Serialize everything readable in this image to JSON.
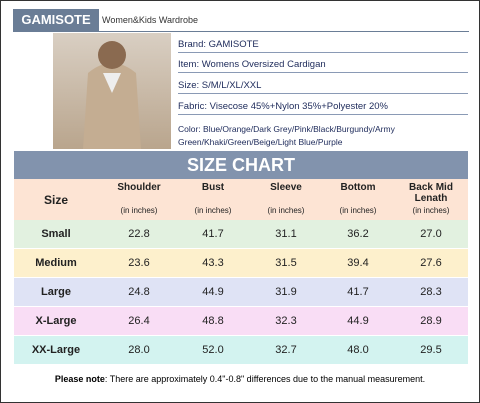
{
  "header": {
    "brand_tag": "GAMISOTE",
    "tagline": "Women&Kids Wardrobe"
  },
  "info": [
    "Brand: GAMISOTE",
    "Item: Womens Oversized Cardigan",
    "Size: S/M/L/XL/XXL",
    "Fabric: Visecose 45%+Nylon 35%+Polyester 20%"
  ],
  "colors": [
    "Color: Blue/Orange/Dark Grey/Pink/Black/Burgundy/Army",
    "Green/Khaki/Green/Beige/Light Blue/Purple"
  ],
  "table": {
    "title": "SIZE CHART",
    "columns": [
      "Size",
      "Shoulder",
      "Bust",
      "Sleeve",
      "Bottom",
      "Back Mid Lenath"
    ],
    "units": [
      "(in inches)",
      "(in inches)",
      "(in inches)",
      "(in inches)",
      "(in inches)"
    ],
    "rows": [
      [
        "Small",
        "22.8",
        "41.7",
        "31.1",
        "36.2",
        "27.0"
      ],
      [
        "Medium",
        "23.6",
        "43.3",
        "31.5",
        "39.4",
        "27.6"
      ],
      [
        "Large",
        "24.8",
        "44.9",
        "31.9",
        "41.7",
        "28.3"
      ],
      [
        "X-Large",
        "26.4",
        "48.8",
        "32.3",
        "44.9",
        "28.9"
      ],
      [
        "XX-Large",
        "28.0",
        "52.0",
        "32.7",
        "48.0",
        "29.5"
      ]
    ]
  },
  "note": {
    "label": "Please note",
    "text": ": There are approximately 0.4\"-0.8\" differences due to the manual measurement."
  }
}
